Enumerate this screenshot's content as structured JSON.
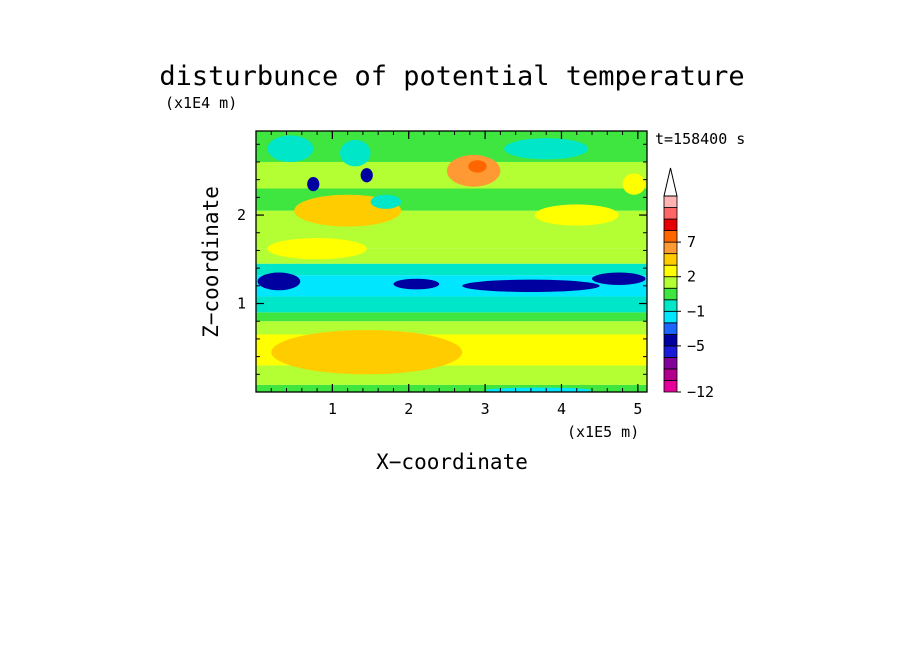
{
  "chart_data": {
    "type": "heatmap",
    "title": "disturbunce of potential temperature",
    "time_label": "t=158400 s",
    "xlabel": "X−coordinate",
    "ylabel": "Z−coordinate",
    "x_unit": "(x1E5 m)",
    "y_unit": "(x1E4 m)",
    "xlim": [
      0,
      5.12
    ],
    "ylim": [
      0,
      2.95
    ],
    "x_ticks": [
      1,
      2,
      3,
      4,
      5
    ],
    "x_tick_labels": [
      "1",
      "2",
      "3",
      "4",
      "5"
    ],
    "y_ticks": [
      1,
      2
    ],
    "y_tick_labels": [
      "1",
      "2"
    ],
    "colorbar": {
      "levels": [
        -12,
        -11,
        -9,
        -7,
        -5,
        -4,
        -3,
        -1,
        0,
        1,
        2,
        4,
        5,
        7,
        9,
        10,
        12
      ],
      "colors": [
        "#e6009a",
        "#b3008c",
        "#800099",
        "#1a1ad9",
        "#0000a0",
        "#1a66ff",
        "#00e6ff",
        "#00e6c8",
        "#40e640",
        "#b3ff33",
        "#ffff00",
        "#ffcc00",
        "#ff9933",
        "#ff6600",
        "#e60000",
        "#ff6666",
        "#ffb3b3"
      ],
      "tick_values": [
        7,
        2,
        -1,
        -5,
        -12
      ],
      "tick_labels": [
        "7",
        "2",
        "−1",
        "−5",
        "−12"
      ],
      "extend": "max"
    },
    "bands": [
      {
        "z": [
          0.0,
          0.08
        ],
        "level": 0.5
      },
      {
        "z": [
          0.08,
          0.3
        ],
        "level": 1.5
      },
      {
        "z": [
          0.3,
          0.65
        ],
        "level": 3.0
      },
      {
        "z": [
          0.65,
          0.8
        ],
        "level": 1.5
      },
      {
        "z": [
          0.8,
          0.9
        ],
        "level": 0.5
      },
      {
        "z": [
          0.9,
          1.08
        ],
        "level": -0.5
      },
      {
        "z": [
          1.08,
          1.32
        ],
        "level": -2.0
      },
      {
        "z": [
          1.32,
          1.45
        ],
        "level": -0.5
      },
      {
        "z": [
          1.45,
          1.62
        ],
        "level": 1.5
      },
      {
        "z": [
          1.62,
          2.05
        ],
        "level": 1.5
      },
      {
        "z": [
          2.05,
          2.3
        ],
        "level": 0.5
      },
      {
        "z": [
          2.3,
          2.6
        ],
        "level": 1.5
      },
      {
        "z": [
          2.6,
          2.95
        ],
        "level": 0.5
      }
    ],
    "features": [
      {
        "x": 1.45,
        "z": 0.45,
        "rx": 1.25,
        "rz": 0.25,
        "level": 4.5
      },
      {
        "x": 0.3,
        "z": 1.25,
        "rx": 0.28,
        "rz": 0.1,
        "level": -4.5
      },
      {
        "x": 2.1,
        "z": 1.22,
        "rx": 0.3,
        "rz": 0.06,
        "level": -4.5
      },
      {
        "x": 3.6,
        "z": 1.2,
        "rx": 0.9,
        "rz": 0.07,
        "level": -4.5
      },
      {
        "x": 4.75,
        "z": 1.28,
        "rx": 0.35,
        "rz": 0.07,
        "level": -4.5
      },
      {
        "x": 1.2,
        "z": 2.05,
        "rx": 0.7,
        "rz": 0.18,
        "level": 4.5
      },
      {
        "x": 0.8,
        "z": 1.62,
        "rx": 0.65,
        "rz": 0.12,
        "level": 3.0
      },
      {
        "x": 2.85,
        "z": 2.5,
        "rx": 0.35,
        "rz": 0.18,
        "level": 5.5
      },
      {
        "x": 2.9,
        "z": 2.55,
        "rx": 0.12,
        "rz": 0.07,
        "level": 7.5
      },
      {
        "x": 0.75,
        "z": 2.35,
        "rx": 0.08,
        "rz": 0.08,
        "level": -4.5
      },
      {
        "x": 1.45,
        "z": 2.45,
        "rx": 0.08,
        "rz": 0.08,
        "level": -4.5
      },
      {
        "x": 0.45,
        "z": 2.75,
        "rx": 0.3,
        "rz": 0.15,
        "level": -0.5
      },
      {
        "x": 1.3,
        "z": 2.7,
        "rx": 0.2,
        "rz": 0.15,
        "level": -0.5
      },
      {
        "x": 1.7,
        "z": 2.15,
        "rx": 0.2,
        "rz": 0.08,
        "level": -0.5
      },
      {
        "x": 4.2,
        "z": 2.0,
        "rx": 0.55,
        "rz": 0.12,
        "level": 3.0
      },
      {
        "x": 4.95,
        "z": 2.35,
        "rx": 0.15,
        "rz": 0.12,
        "level": 3.0
      },
      {
        "x": 3.8,
        "z": 2.75,
        "rx": 0.55,
        "rz": 0.12,
        "level": -0.5
      },
      {
        "x": 3.2,
        "z": 0.4,
        "rx": 0.4,
        "rz": 0.07,
        "level": 3.0
      },
      {
        "x": 3.7,
        "z": 0.02,
        "rx": 0.7,
        "rz": 0.03,
        "level": -2.0
      }
    ]
  }
}
